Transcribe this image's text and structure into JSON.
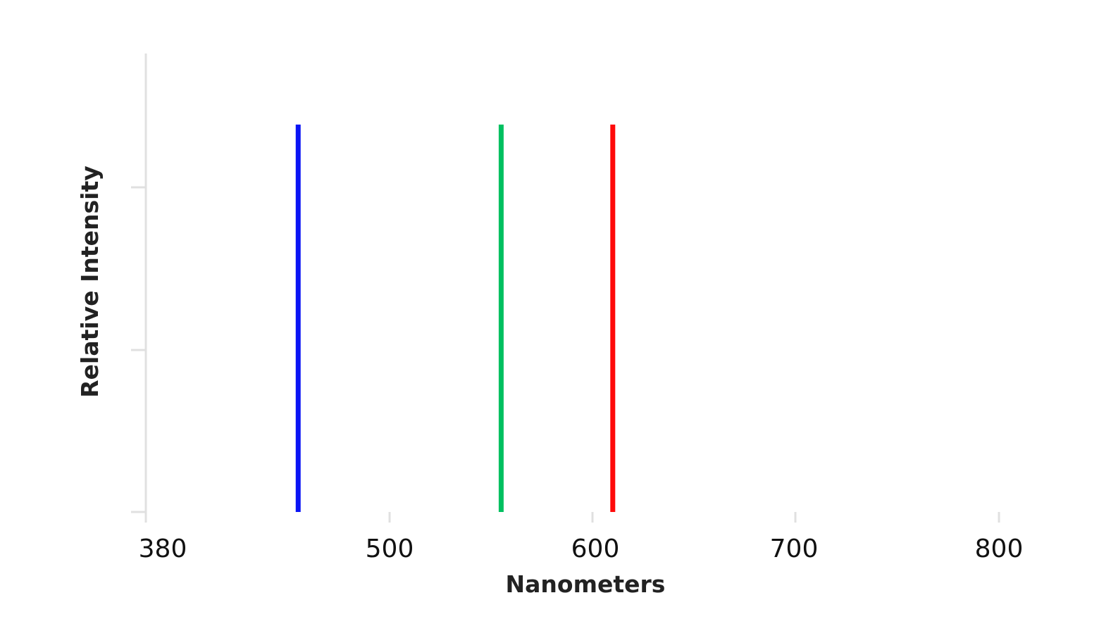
{
  "chart_data": {
    "type": "bar",
    "xlabel": "Nanometers",
    "ylabel": "Relative Intensity",
    "xlim": [
      380,
      800
    ],
    "ylim": [
      0,
      1
    ],
    "x_ticks": [
      380,
      500,
      600,
      700,
      800
    ],
    "x_tick_labels": [
      "380",
      "500",
      "600",
      "700",
      "800"
    ],
    "y_ticks": [
      0,
      0.5,
      1
    ],
    "grid": false,
    "legend": "none",
    "series": [
      {
        "x": 455,
        "value": 0.845,
        "color": "#0a14f5"
      },
      {
        "x": 555,
        "value": 0.845,
        "color": "#00c060"
      },
      {
        "x": 610,
        "value": 0.845,
        "color": "#ff0a0a"
      }
    ]
  }
}
